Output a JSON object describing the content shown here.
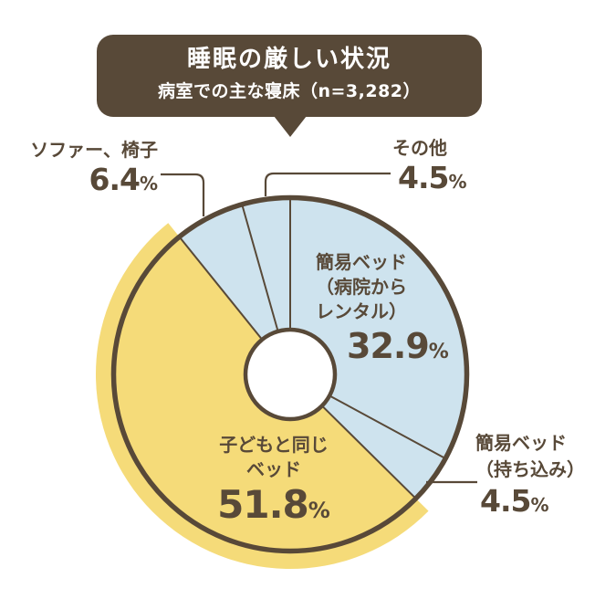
{
  "header": {
    "title": "睡眠の厳しい状況",
    "subtitle": "病室での主な寝床（n=3,282）"
  },
  "chart_data": {
    "type": "pie",
    "donut": true,
    "title": "睡眠の厳しい状況",
    "subtitle": "病室での主な寝床（n=3,282）",
    "sample_size": "n=3,282",
    "unit": "%",
    "start_angle_deg": 0,
    "direction": "clockwise",
    "legend_position": "labels-on-chart",
    "segments": [
      {
        "key": "rental",
        "label": "簡易ベッド（病院からレンタル）",
        "value": 32.9,
        "color": "#cee3ee",
        "emphasized": false
      },
      {
        "key": "bring",
        "label": "簡易ベッド（持ち込み）",
        "value": 4.5,
        "color": "#cee3ee",
        "emphasized": false
      },
      {
        "key": "same_bed",
        "label": "子どもと同じベッド",
        "value": 51.8,
        "color": "#f5db79",
        "emphasized": true
      },
      {
        "key": "sofa",
        "label": "ソファー、椅子",
        "value": 6.4,
        "color": "#cee3ee",
        "emphasized": false
      },
      {
        "key": "other",
        "label": "その他",
        "value": 4.5,
        "color": "#cee3ee",
        "emphasized": false
      }
    ]
  },
  "callouts": {
    "sofa": {
      "lines": [
        "ソファー、椅子"
      ],
      "value": "6.4",
      "unit": "%"
    },
    "other": {
      "lines": [
        "その他"
      ],
      "value": "4.5",
      "unit": "%"
    },
    "rental": {
      "lines": [
        "簡易ベッド",
        "（病院から",
        "レンタル）"
      ],
      "value": "32.9",
      "unit": "%"
    },
    "bring": {
      "lines": [
        "簡易ベッド",
        "（持ち込み）"
      ],
      "value": "4.5",
      "unit": "%"
    },
    "same_bed": {
      "lines": [
        "子どもと同じ",
        "ベッド"
      ],
      "value": "51.8",
      "unit": "%"
    }
  },
  "colors": {
    "brown": "#584938",
    "blue": "#cee3ee",
    "yellow": "#f5db79",
    "background": "#ffffff",
    "title_text": "#ffffff"
  }
}
